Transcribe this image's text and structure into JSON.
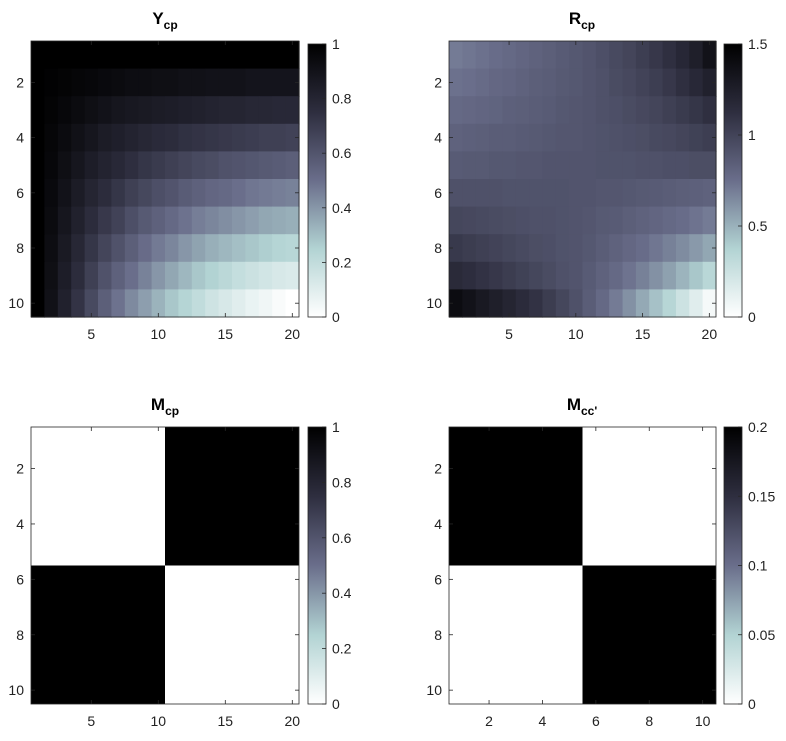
{
  "chart_data": [
    {
      "type": "heatmap",
      "title": "Y",
      "title_subscript": "cp",
      "x_ticks": [
        5,
        10,
        15,
        20
      ],
      "y_ticks": [
        2,
        4,
        6,
        8,
        10
      ],
      "colorbar_ticks": [
        "0",
        "0.2",
        "0.4",
        "0.6",
        "0.8",
        "1"
      ],
      "clim": [
        0,
        1
      ],
      "colormap": "bone_reversed",
      "rows": 10,
      "cols": 20,
      "values": [
        [
          1.0,
          1.0,
          1.0,
          1.0,
          1.0,
          1.0,
          1.0,
          1.0,
          1.0,
          1.0,
          1.0,
          1.0,
          1.0,
          1.0,
          1.0,
          1.0,
          1.0,
          1.0,
          1.0,
          1.0
        ],
        [
          1.0,
          0.99,
          0.98,
          0.97,
          0.96,
          0.95,
          0.94,
          0.93,
          0.93,
          0.92,
          0.92,
          0.91,
          0.91,
          0.9,
          0.9,
          0.9,
          0.89,
          0.89,
          0.89,
          0.89
        ],
        [
          1.0,
          0.98,
          0.96,
          0.94,
          0.92,
          0.9,
          0.88,
          0.87,
          0.86,
          0.85,
          0.84,
          0.83,
          0.82,
          0.81,
          0.8,
          0.8,
          0.79,
          0.79,
          0.78,
          0.78
        ],
        [
          1.0,
          0.97,
          0.94,
          0.91,
          0.88,
          0.85,
          0.83,
          0.81,
          0.79,
          0.77,
          0.76,
          0.74,
          0.73,
          0.72,
          0.71,
          0.7,
          0.69,
          0.68,
          0.68,
          0.67
        ],
        [
          1.0,
          0.96,
          0.92,
          0.88,
          0.84,
          0.81,
          0.78,
          0.75,
          0.72,
          0.7,
          0.68,
          0.66,
          0.64,
          0.63,
          0.61,
          0.6,
          0.59,
          0.58,
          0.57,
          0.56
        ],
        [
          1.0,
          0.95,
          0.9,
          0.85,
          0.8,
          0.76,
          0.72,
          0.68,
          0.65,
          0.62,
          0.6,
          0.57,
          0.55,
          0.53,
          0.52,
          0.5,
          0.48,
          0.47,
          0.46,
          0.45
        ],
        [
          1.0,
          0.94,
          0.88,
          0.82,
          0.76,
          0.71,
          0.67,
          0.62,
          0.58,
          0.55,
          0.52,
          0.49,
          0.46,
          0.44,
          0.42,
          0.4,
          0.38,
          0.36,
          0.35,
          0.34
        ],
        [
          1.0,
          0.93,
          0.86,
          0.79,
          0.72,
          0.66,
          0.61,
          0.56,
          0.51,
          0.47,
          0.44,
          0.4,
          0.37,
          0.34,
          0.32,
          0.3,
          0.28,
          0.26,
          0.24,
          0.23
        ],
        [
          1.0,
          0.92,
          0.84,
          0.76,
          0.68,
          0.61,
          0.55,
          0.5,
          0.45,
          0.4,
          0.36,
          0.32,
          0.28,
          0.25,
          0.22,
          0.19,
          0.17,
          0.15,
          0.13,
          0.12
        ],
        [
          1.0,
          0.91,
          0.82,
          0.73,
          0.64,
          0.56,
          0.49,
          0.43,
          0.38,
          0.33,
          0.28,
          0.24,
          0.2,
          0.16,
          0.13,
          0.1,
          0.07,
          0.05,
          0.02,
          0.0
        ]
      ]
    },
    {
      "type": "heatmap",
      "title": "R",
      "title_subscript": "cp",
      "x_ticks": [
        5,
        10,
        15,
        20
      ],
      "y_ticks": [
        2,
        4,
        6,
        8,
        10
      ],
      "colorbar_ticks": [
        "0",
        "0.5",
        "1",
        "1.5"
      ],
      "clim": [
        0,
        1.5
      ],
      "colormap": "bone_reversed",
      "rows": 10,
      "cols": 20,
      "values": [
        [
          0.7,
          0.72,
          0.74,
          0.76,
          0.78,
          0.8,
          0.82,
          0.84,
          0.86,
          0.88,
          0.9,
          0.93,
          0.96,
          0.99,
          1.03,
          1.07,
          1.12,
          1.18,
          1.25,
          1.35
        ],
        [
          0.74,
          0.75,
          0.77,
          0.79,
          0.8,
          0.82,
          0.84,
          0.85,
          0.87,
          0.88,
          0.9,
          0.92,
          0.95,
          0.97,
          1.0,
          1.03,
          1.07,
          1.12,
          1.17,
          1.23
        ],
        [
          0.78,
          0.79,
          0.8,
          0.81,
          0.83,
          0.84,
          0.85,
          0.86,
          0.88,
          0.89,
          0.9,
          0.92,
          0.93,
          0.95,
          0.97,
          0.99,
          1.02,
          1.05,
          1.08,
          1.12
        ],
        [
          0.82,
          0.83,
          0.84,
          0.85,
          0.85,
          0.86,
          0.87,
          0.88,
          0.89,
          0.89,
          0.9,
          0.91,
          0.92,
          0.93,
          0.94,
          0.96,
          0.97,
          0.99,
          1.01,
          1.03
        ],
        [
          0.86,
          0.87,
          0.87,
          0.88,
          0.88,
          0.89,
          0.89,
          0.9,
          0.9,
          0.9,
          0.9,
          0.91,
          0.91,
          0.91,
          0.92,
          0.92,
          0.93,
          0.93,
          0.94,
          0.94
        ],
        [
          0.92,
          0.92,
          0.92,
          0.92,
          0.91,
          0.91,
          0.91,
          0.91,
          0.91,
          0.9,
          0.9,
          0.89,
          0.89,
          0.88,
          0.87,
          0.86,
          0.85,
          0.84,
          0.83,
          0.82
        ],
        [
          0.98,
          0.97,
          0.96,
          0.95,
          0.94,
          0.93,
          0.92,
          0.92,
          0.91,
          0.9,
          0.89,
          0.87,
          0.86,
          0.84,
          0.82,
          0.8,
          0.78,
          0.76,
          0.73,
          0.7
        ],
        [
          1.06,
          1.04,
          1.02,
          1.0,
          0.98,
          0.96,
          0.94,
          0.93,
          0.91,
          0.9,
          0.88,
          0.85,
          0.82,
          0.79,
          0.76,
          0.72,
          0.68,
          0.64,
          0.59,
          0.54
        ],
        [
          1.16,
          1.13,
          1.1,
          1.07,
          1.04,
          1.01,
          0.98,
          0.95,
          0.92,
          0.9,
          0.86,
          0.82,
          0.78,
          0.73,
          0.68,
          0.62,
          0.56,
          0.49,
          0.42,
          0.34
        ],
        [
          1.4,
          1.35,
          1.3,
          1.25,
          1.2,
          1.15,
          1.1,
          1.04,
          0.98,
          0.92,
          0.85,
          0.78,
          0.7,
          0.62,
          0.53,
          0.44,
          0.35,
          0.25,
          0.15,
          0.05
        ]
      ]
    },
    {
      "type": "heatmap",
      "title": "M",
      "title_subscript": "cp",
      "x_ticks": [
        5,
        10,
        15,
        20
      ],
      "y_ticks": [
        2,
        4,
        6,
        8,
        10
      ],
      "colorbar_ticks": [
        "0",
        "0.2",
        "0.4",
        "0.6",
        "0.8",
        "1"
      ],
      "clim": [
        0,
        1
      ],
      "colormap": "bone_reversed",
      "rows": 10,
      "cols": 20,
      "block": {
        "split_row": 5,
        "split_col": 10,
        "top_left": 0,
        "top_right": 1,
        "bottom_left": 1,
        "bottom_right": 0
      }
    },
    {
      "type": "heatmap",
      "title": "M",
      "title_subscript": "cc'",
      "x_ticks": [
        2,
        4,
        6,
        8,
        10
      ],
      "y_ticks": [
        2,
        4,
        6,
        8,
        10
      ],
      "colorbar_ticks": [
        "0",
        "0.05",
        "0.1",
        "0.15",
        "0.2"
      ],
      "clim": [
        0,
        0.2
      ],
      "colormap": "bone_reversed",
      "rows": 10,
      "cols": 10,
      "block": {
        "split_row": 5,
        "split_col": 5,
        "top_left": 0.2,
        "top_right": 0,
        "bottom_left": 0,
        "bottom_right": 0.2
      }
    }
  ]
}
